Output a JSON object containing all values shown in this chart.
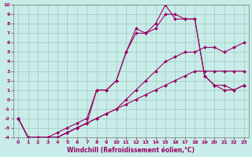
{
  "xlabel": "Windchill (Refroidissement éolien,°C)",
  "ylabel": "",
  "xlim": [
    -0.5,
    23.5
  ],
  "ylim": [
    -4,
    10
  ],
  "xticks": [
    0,
    1,
    2,
    3,
    4,
    5,
    6,
    7,
    8,
    9,
    10,
    11,
    12,
    13,
    14,
    15,
    16,
    17,
    18,
    19,
    20,
    21,
    22,
    23
  ],
  "yticks": [
    -4,
    -3,
    -2,
    -1,
    0,
    1,
    2,
    3,
    4,
    5,
    6,
    7,
    8,
    9,
    10
  ],
  "bg_color": "#c8ece8",
  "grid_color": "#a0c8c0",
  "line_color": "#990066",
  "line1_x": [
    0,
    1,
    2,
    3,
    4,
    5,
    6,
    7,
    8,
    9,
    10,
    11,
    12,
    13,
    14,
    15,
    16,
    17,
    18,
    19,
    20,
    21,
    22,
    23
  ],
  "line1_y": [
    -2,
    -4,
    -4,
    -4,
    -4,
    -3.5,
    -3,
    -2.5,
    -2,
    -1.5,
    -1,
    -0.5,
    0,
    0.5,
    1,
    1.5,
    2,
    2.5,
    3,
    3,
    3,
    3,
    3,
    3
  ],
  "line2_x": [
    0,
    1,
    2,
    3,
    4,
    5,
    6,
    7,
    8,
    9,
    10,
    11,
    12,
    13,
    14,
    15,
    16,
    17,
    18,
    19,
    20,
    21,
    22,
    23
  ],
  "line2_y": [
    -2,
    -4,
    -4,
    -4,
    -4,
    -3.5,
    -3,
    -2.5,
    -2,
    -1.5,
    -1,
    0,
    1,
    2,
    3,
    4,
    4.5,
    5,
    5,
    5.5,
    5.5,
    5,
    5.5,
    6
  ],
  "line3_x": [
    0,
    1,
    2,
    3,
    4,
    5,
    6,
    7,
    8,
    9,
    10,
    11,
    12,
    13,
    14,
    15,
    16,
    17,
    18,
    19,
    20,
    21,
    22,
    23
  ],
  "line3_y": [
    -2,
    -4,
    -4,
    -4,
    -3.5,
    -3,
    -2.5,
    -2,
    1,
    1,
    2,
    5,
    7,
    7,
    7.5,
    9,
    9,
    8.5,
    8.5,
    2.5,
    1.5,
    1.5,
    1,
    1.5
  ],
  "line4_x": [
    0,
    1,
    2,
    3,
    4,
    5,
    6,
    7,
    8,
    9,
    10,
    11,
    12,
    13,
    14,
    15,
    16,
    17,
    18,
    19,
    20,
    21,
    22,
    23
  ],
  "line4_y": [
    -2,
    -4,
    -4,
    -4,
    -4,
    -3.5,
    -3,
    -2.5,
    1,
    1,
    2,
    5,
    7.5,
    7,
    8,
    10,
    8.5,
    8.5,
    8.5,
    2.5,
    1.5,
    1,
    1,
    1.5
  ],
  "marker": "D",
  "markersize": 2.0,
  "linewidth": 0.8,
  "axis_fontsize": 5.5,
  "tick_fontsize": 4.5
}
